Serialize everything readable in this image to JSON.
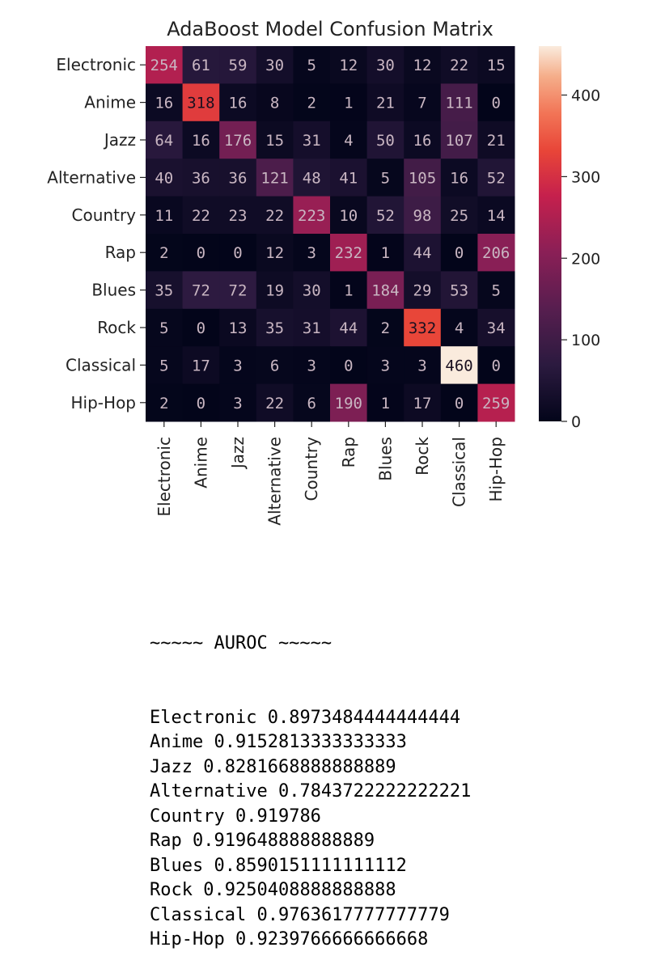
{
  "chart_data": {
    "type": "heatmap",
    "title": "AdaBoost Model Confusion Matrix",
    "row_labels": [
      "Electronic",
      "Anime",
      "Jazz",
      "Alternative",
      "Country",
      "Rap",
      "Blues",
      "Rock",
      "Classical",
      "Hip-Hop"
    ],
    "col_labels": [
      "Electronic",
      "Anime",
      "Jazz",
      "Alternative",
      "Country",
      "Rap",
      "Blues",
      "Rock",
      "Classical",
      "Hip-Hop"
    ],
    "values": [
      [
        254,
        61,
        59,
        30,
        5,
        12,
        30,
        12,
        22,
        15
      ],
      [
        16,
        318,
        16,
        8,
        2,
        1,
        21,
        7,
        111,
        0
      ],
      [
        64,
        16,
        176,
        15,
        31,
        4,
        50,
        16,
        107,
        21
      ],
      [
        40,
        36,
        36,
        121,
        48,
        41,
        5,
        105,
        16,
        52
      ],
      [
        11,
        22,
        23,
        22,
        223,
        10,
        52,
        98,
        25,
        14
      ],
      [
        2,
        0,
        0,
        12,
        3,
        232,
        1,
        44,
        0,
        206
      ],
      [
        35,
        72,
        72,
        19,
        30,
        1,
        184,
        29,
        53,
        5
      ],
      [
        5,
        0,
        13,
        35,
        31,
        44,
        2,
        332,
        4,
        34
      ],
      [
        5,
        17,
        3,
        6,
        3,
        0,
        3,
        3,
        460,
        0
      ],
      [
        2,
        0,
        3,
        22,
        6,
        190,
        1,
        17,
        0,
        259
      ]
    ],
    "colorbar": {
      "min": 0,
      "max": 460,
      "ticks": [
        0,
        100,
        200,
        300,
        400
      ],
      "colormap": "rocket"
    }
  },
  "auroc": {
    "header": "~~~~~ AUROC ~~~~~",
    "items": [
      {
        "label": "Electronic",
        "value": "0.8973484444444444"
      },
      {
        "label": "Anime",
        "value": "0.9152813333333333"
      },
      {
        "label": "Jazz",
        "value": "0.8281668888888889"
      },
      {
        "label": "Alternative",
        "value": "0.7843722222222221"
      },
      {
        "label": "Country",
        "value": "0.919786"
      },
      {
        "label": "Rap",
        "value": "0.919648888888889"
      },
      {
        "label": "Blues",
        "value": "0.8590151111111112"
      },
      {
        "label": "Rock",
        "value": "0.9250408888888888"
      },
      {
        "label": "Classical",
        "value": "0.9763617777777779"
      },
      {
        "label": "Hip-Hop",
        "value": "0.9239766666666668"
      }
    ]
  }
}
